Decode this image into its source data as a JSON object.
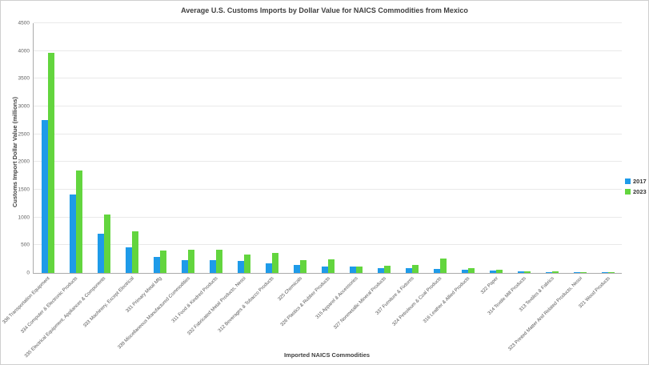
{
  "chart_data": {
    "type": "bar",
    "title": "Average U.S. Customs Imports by Dollar Value for NAICS Commodities from Mexico",
    "xlabel": "Imported NAICS Commodities",
    "ylabel": "Customs Import Dollar Value (millions)",
    "ylim": [
      0,
      4500
    ],
    "yticks": [
      0,
      500,
      1000,
      1500,
      2000,
      2500,
      3000,
      3500,
      4000,
      4500
    ],
    "grid": true,
    "legend_position": "right",
    "categories": [
      "336 Transportation Equipment",
      "334 Computer & Electronic Products",
      "335 Electrical Equipment, Appliances & Components",
      "333 Machinery, Except Electrical",
      "331 Primary Metal Mfg",
      "339 Miscellaneous Manufactured Commodities",
      "311 Food & Kindred Products",
      "332 Fabricated Metal Products, Nesoi",
      "312 Beverages & Tobacco Products",
      "325 Chemicals",
      "326 Plastics & Rubber Products",
      "315 Apparel & Accessories",
      "327 Nonmetallic Mineral Products",
      "337 Furniture & Fixtures",
      "324 Petroleum & Coal Products",
      "316 Leather & Allied Products",
      "322 Paper",
      "314 Textile Mill Products",
      "313 Textiles & Fabrics",
      "323 Printed Matter And Related Products, Nesoi",
      "321 Wood Products"
    ],
    "series": [
      {
        "name": "2017",
        "color": "#1E9BE9",
        "values": [
          2750,
          1420,
          700,
          460,
          285,
          230,
          230,
          215,
          170,
          150,
          120,
          110,
          90,
          80,
          70,
          65,
          40,
          25,
          18,
          12,
          8
        ]
      },
      {
        "name": "2023",
        "color": "#63D53E",
        "values": [
          3960,
          1840,
          1060,
          745,
          400,
          415,
          420,
          330,
          360,
          230,
          245,
          115,
          135,
          145,
          255,
          80,
          55,
          35,
          25,
          15,
          20
        ]
      }
    ]
  }
}
